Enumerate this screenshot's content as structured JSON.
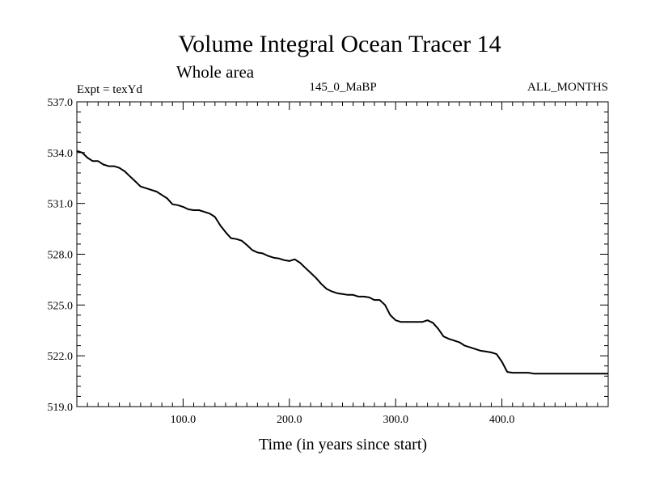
{
  "chart_data": {
    "type": "line",
    "title": "Volume Integral Ocean Tracer 14",
    "subtitle": "Whole area",
    "annotations": {
      "left": "Expt = texYd",
      "center": "145_0_MaBP",
      "right": "ALL_MONTHS"
    },
    "xlabel": "Time (in years since start)",
    "ylabel": "",
    "xlim": [
      0,
      500
    ],
    "ylim": [
      519.0,
      537.0
    ],
    "x_ticks": [
      100,
      200,
      300,
      400
    ],
    "x_tick_labels": [
      "100.0",
      "200.0",
      "300.0",
      "400.0"
    ],
    "y_ticks": [
      519.0,
      522.0,
      525.0,
      528.0,
      531.0,
      534.0,
      537.0
    ],
    "y_tick_labels": [
      "519.0",
      "522.0",
      "525.0",
      "528.0",
      "531.0",
      "534.0",
      "537.0"
    ],
    "grid": false,
    "line_color": "#000000",
    "series": [
      {
        "x": [
          0,
          5,
          10,
          15,
          20,
          25,
          30,
          35,
          40,
          45,
          50,
          55,
          60,
          65,
          70,
          75,
          80,
          85,
          90,
          95,
          100,
          105,
          110,
          115,
          120,
          125,
          130,
          135,
          140,
          145,
          150,
          155,
          160,
          165,
          170,
          175,
          180,
          185,
          190,
          195,
          200,
          205,
          210,
          215,
          220,
          225,
          230,
          235,
          240,
          245,
          250,
          255,
          260,
          265,
          270,
          275,
          280,
          285,
          290,
          295,
          300,
          305,
          310,
          315,
          320,
          325,
          330,
          335,
          340,
          345,
          350,
          355,
          360,
          365,
          370,
          375,
          380,
          385,
          390,
          395,
          400,
          405,
          410,
          415,
          420,
          425,
          430,
          435,
          440,
          445,
          450,
          455,
          460,
          465,
          470,
          475,
          480,
          485,
          490,
          495,
          500
        ],
        "values": [
          534.1,
          534.0,
          533.7,
          533.5,
          533.5,
          533.3,
          533.2,
          533.2,
          533.1,
          532.9,
          532.6,
          532.3,
          532.0,
          531.9,
          531.8,
          531.7,
          531.5,
          531.3,
          530.95,
          530.9,
          530.8,
          530.65,
          530.6,
          530.6,
          530.5,
          530.4,
          530.2,
          529.7,
          529.3,
          528.95,
          528.9,
          528.8,
          528.55,
          528.25,
          528.1,
          528.05,
          527.9,
          527.8,
          527.75,
          527.65,
          527.6,
          527.7,
          527.5,
          527.2,
          526.9,
          526.6,
          526.25,
          525.95,
          525.8,
          525.7,
          525.65,
          525.6,
          525.6,
          525.5,
          525.5,
          525.45,
          525.3,
          525.3,
          525.0,
          524.4,
          524.1,
          524.0,
          524.0,
          524.0,
          524.0,
          524.0,
          524.1,
          523.95,
          523.6,
          523.15,
          523.0,
          522.9,
          522.8,
          522.6,
          522.5,
          522.4,
          522.3,
          522.25,
          522.2,
          522.1,
          521.65,
          521.05,
          521.0,
          521.0,
          521.0,
          521.0,
          520.95,
          520.95,
          520.95,
          520.95,
          520.95,
          520.95,
          520.95,
          520.95,
          520.95,
          520.95,
          520.95,
          520.95,
          520.95,
          520.95,
          520.95
        ]
      }
    ]
  }
}
